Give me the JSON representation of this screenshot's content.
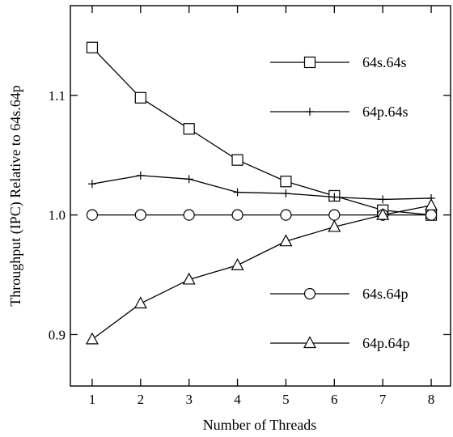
{
  "chart_data": {
    "type": "line",
    "title": "",
    "xlabel": "Number of Threads",
    "ylabel": "Throughput (IPC) Relative to 64s.64p",
    "xlim": [
      0.55,
      8.4
    ],
    "ylim": [
      0.857,
      1.175
    ],
    "xticks": [
      1,
      2,
      3,
      4,
      5,
      6,
      7,
      8
    ],
    "yticks": [
      0.9,
      1.0,
      1.1
    ],
    "ytick_labels": [
      "0.9",
      "1.0",
      "1.1"
    ],
    "grid": false,
    "legend_placement": "right",
    "x": [
      1,
      2,
      3,
      4,
      5,
      6,
      7,
      8
    ],
    "series": [
      {
        "name": "64s.64s",
        "marker": "square",
        "values": [
          1.14,
          1.098,
          1.072,
          1.046,
          1.028,
          1.016,
          1.004,
          1.0
        ]
      },
      {
        "name": "64p.64s",
        "marker": "plus",
        "values": [
          1.026,
          1.033,
          1.03,
          1.019,
          1.018,
          1.015,
          1.013,
          1.014
        ]
      },
      {
        "name": "64s.64p",
        "marker": "circle",
        "values": [
          1.0,
          1.0,
          1.0,
          1.0,
          1.0,
          1.0,
          1.0,
          1.0
        ]
      },
      {
        "name": "64p.64p",
        "marker": "triangle",
        "values": [
          0.896,
          0.926,
          0.946,
          0.958,
          0.978,
          0.99,
          1.0,
          1.008
        ]
      }
    ]
  }
}
